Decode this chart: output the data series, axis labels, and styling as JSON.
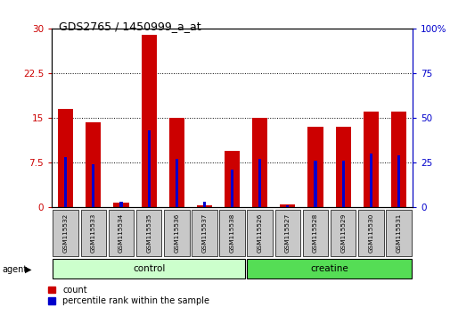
{
  "title": "GDS2765 / 1450999_a_at",
  "categories": [
    "GSM115532",
    "GSM115533",
    "GSM115534",
    "GSM115535",
    "GSM115536",
    "GSM115537",
    "GSM115538",
    "GSM115526",
    "GSM115527",
    "GSM115528",
    "GSM115529",
    "GSM115530",
    "GSM115531"
  ],
  "counts": [
    16.5,
    14.3,
    0.8,
    29.0,
    15.0,
    0.3,
    9.5,
    15.0,
    0.5,
    13.5,
    13.5,
    16.0,
    16.0
  ],
  "percentiles": [
    28,
    24,
    3,
    43,
    27,
    3,
    21,
    27,
    1,
    26,
    26,
    30,
    29
  ],
  "count_color": "#cc0000",
  "percentile_color": "#0000cc",
  "ylim_left": [
    0,
    30
  ],
  "ylim_right": [
    0,
    100
  ],
  "yticks_left": [
    0,
    7.5,
    15,
    22.5,
    30
  ],
  "yticks_right": [
    0,
    25,
    50,
    75,
    100
  ],
  "ytick_labels_left": [
    "0",
    "7.5",
    "15",
    "22.5",
    "30"
  ],
  "ytick_labels_right": [
    "0",
    "25",
    "50",
    "75",
    "100%"
  ],
  "group_labels": [
    "control",
    "creatine"
  ],
  "group_colors_light": [
    "#ccffcc",
    "#55dd55"
  ],
  "group_ranges": [
    [
      0,
      7
    ],
    [
      7,
      13
    ]
  ],
  "bg_color": "#ffffff"
}
